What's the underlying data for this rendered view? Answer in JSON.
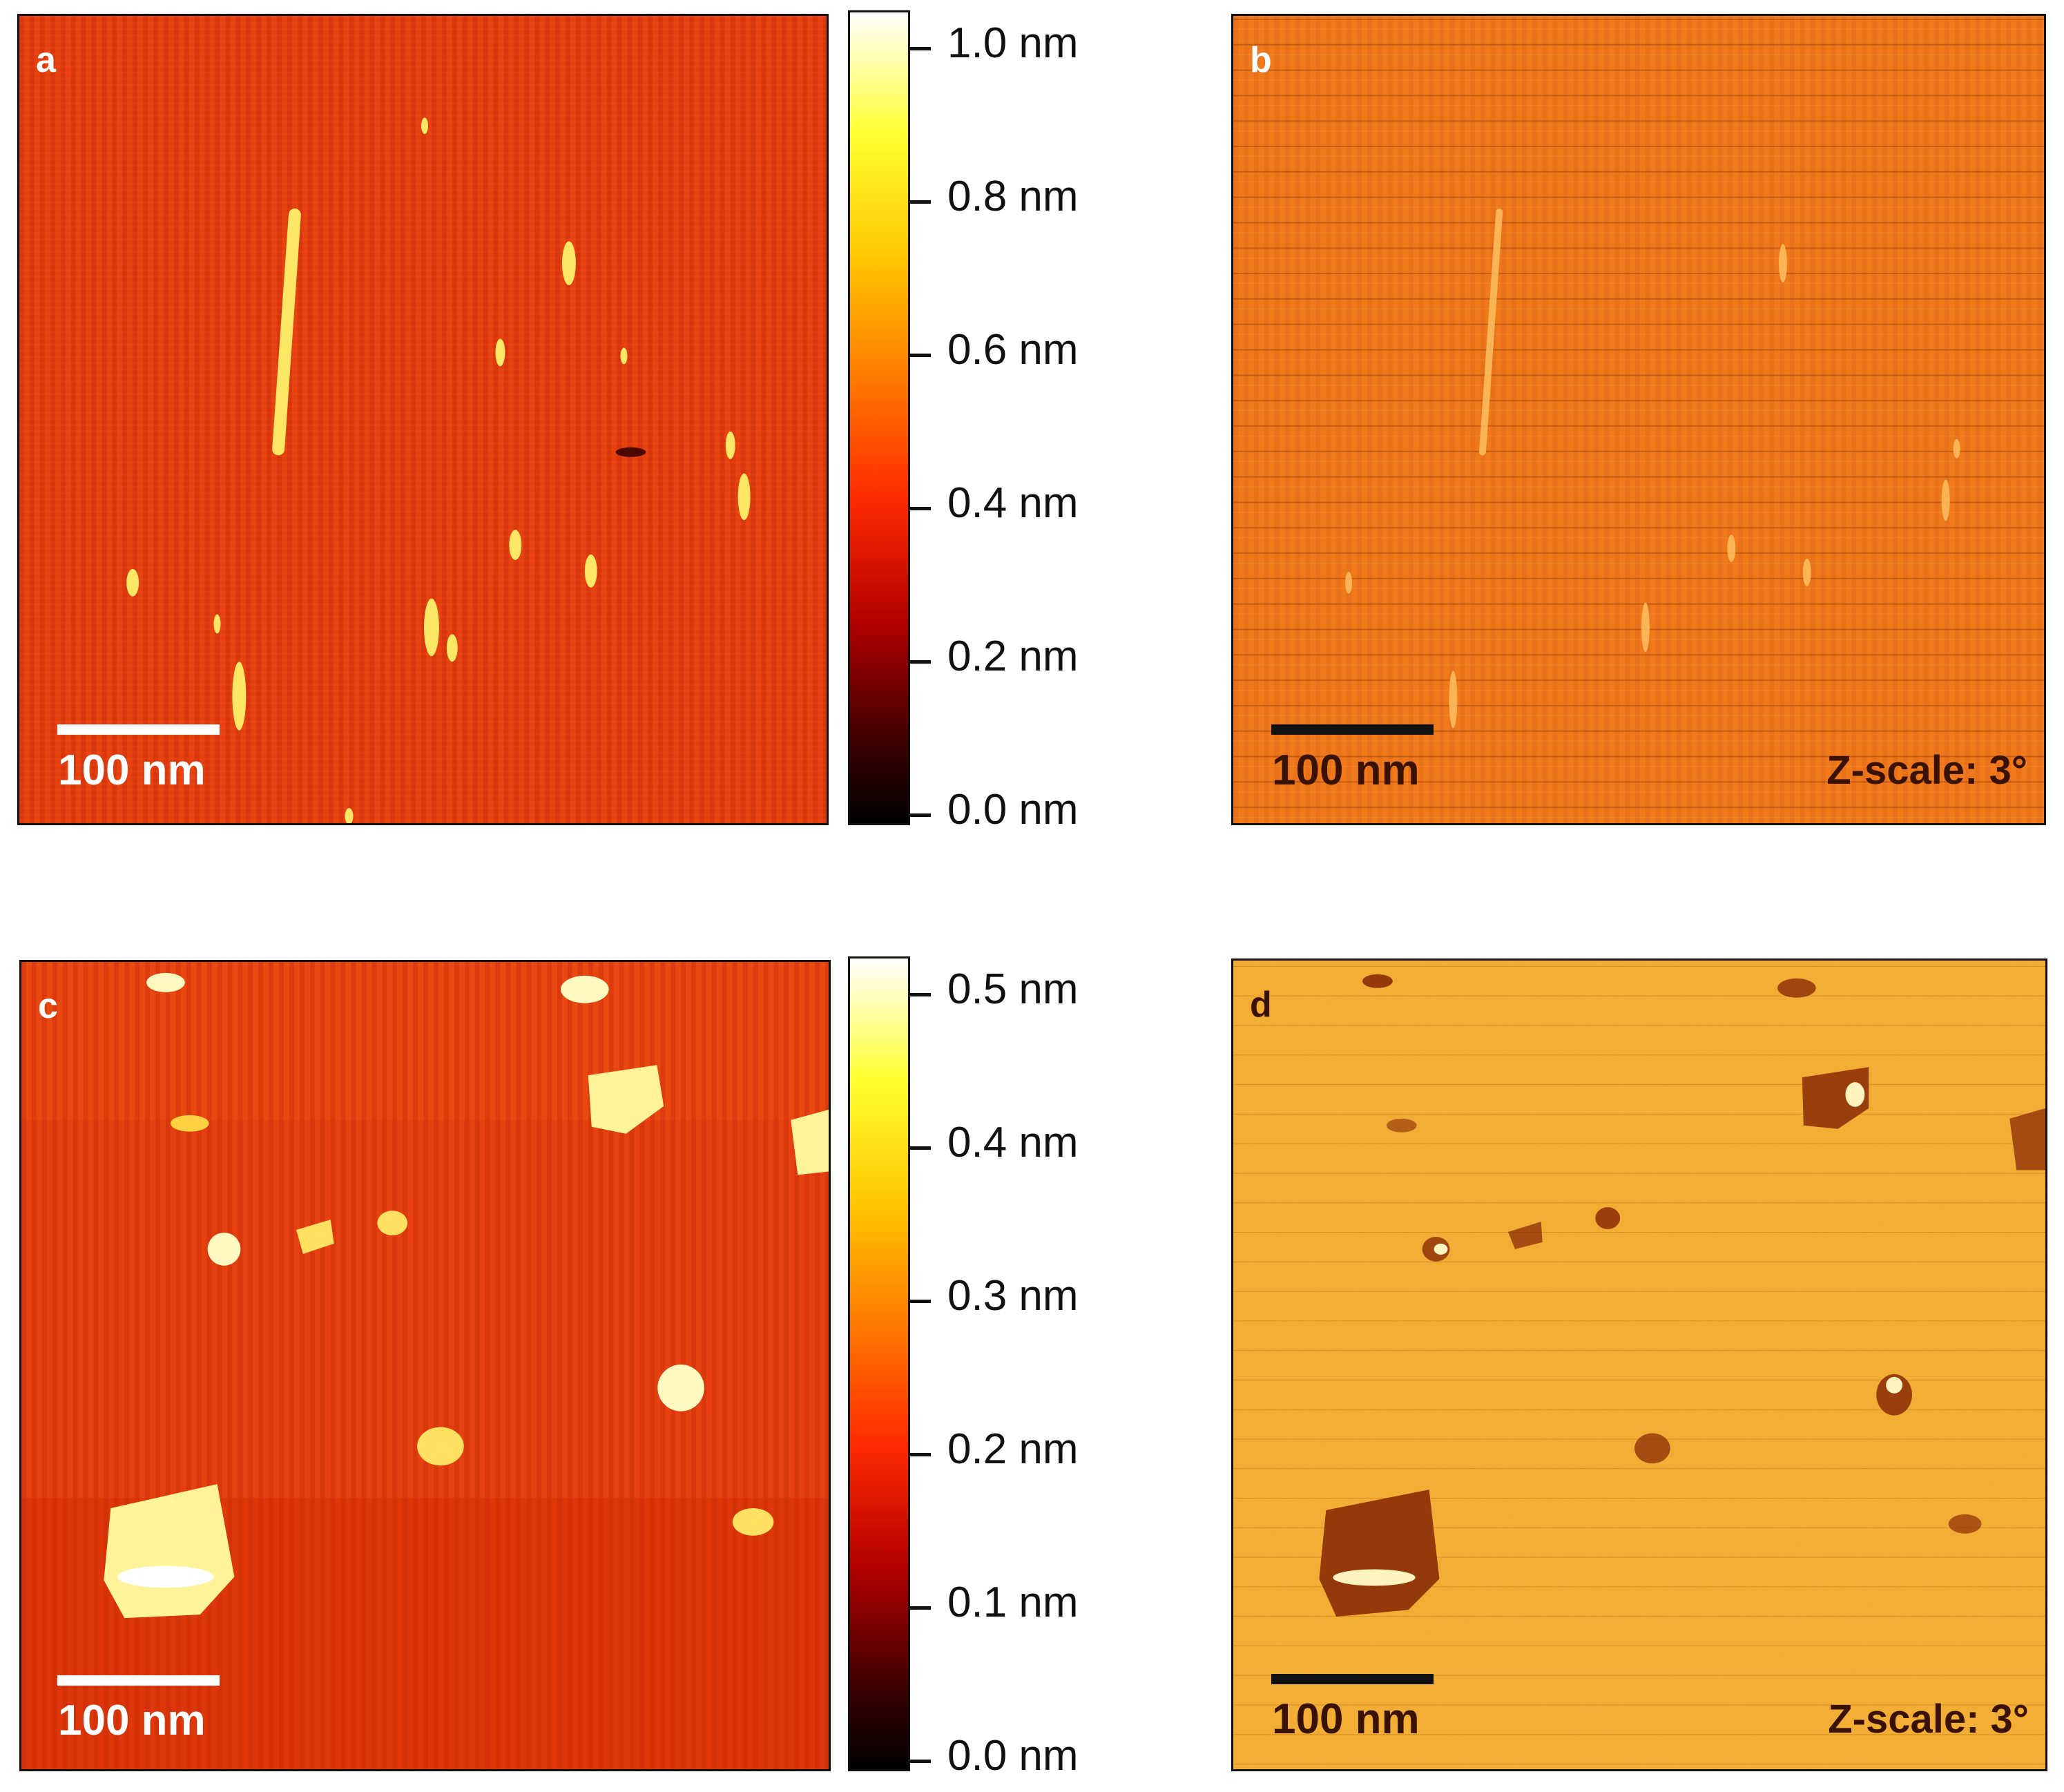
{
  "figure": {
    "panels": [
      {
        "id": "a",
        "letter": "a",
        "kind": "height",
        "letter_color": "#ffffff",
        "scalebar": {
          "label": "100 nm",
          "color": "#ffffff"
        },
        "zscale": ""
      },
      {
        "id": "b",
        "letter": "b",
        "kind": "phase",
        "letter_color": "#ffffff",
        "scalebar": {
          "label": "100 nm",
          "color": "#111111"
        },
        "zscale": "Z-scale: 3°"
      },
      {
        "id": "c",
        "letter": "c",
        "kind": "height",
        "letter_color": "#ffffff",
        "scalebar": {
          "label": "100 nm",
          "color": "#ffffff"
        },
        "zscale": ""
      },
      {
        "id": "d",
        "letter": "d",
        "kind": "phase",
        "letter_color": "#3a1200",
        "scalebar": {
          "label": "100 nm",
          "color": "#111111"
        },
        "zscale": "Z-scale: 3°"
      }
    ],
    "colorbars": [
      {
        "id": "top",
        "ticks": [
          "1.0 nm",
          "0.8 nm",
          "0.6 nm",
          "0.4 nm",
          "0.2 nm",
          "0.0 nm"
        ]
      },
      {
        "id": "bottom",
        "ticks": [
          "0.5 nm",
          "0.4 nm",
          "0.3 nm",
          "0.2 nm",
          "0.1 nm",
          "0.0 nm"
        ]
      }
    ],
    "colors": {
      "colormap": [
        "#000000",
        "#3c0000",
        "#b40000",
        "#ff2a00",
        "#ff7a00",
        "#ffc800",
        "#ffff30",
        "#ffffff"
      ],
      "height_background": "#e23a10",
      "phase_b_background": "#f07a1a",
      "phase_d_background": "#f0a830",
      "feature_bright": "#fff39a",
      "feature_dark": "#7a1e06"
    }
  }
}
